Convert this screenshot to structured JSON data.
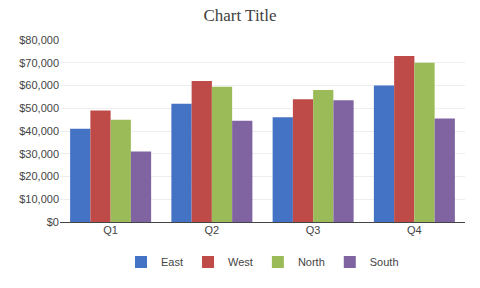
{
  "chart_data": {
    "type": "bar",
    "title": "Chart Title",
    "categories": [
      "Q1",
      "Q2",
      "Q3",
      "Q4"
    ],
    "series": [
      {
        "name": "East",
        "color": "#4472C4",
        "values": [
          41000,
          52000,
          46000,
          60000
        ]
      },
      {
        "name": "West",
        "color": "#BE4B48",
        "values": [
          49000,
          62000,
          54000,
          73000
        ]
      },
      {
        "name": "North",
        "color": "#9BBB59",
        "values": [
          45000,
          59500,
          58000,
          70000
        ]
      },
      {
        "name": "South",
        "color": "#8064A2",
        "values": [
          31000,
          44500,
          53500,
          45500
        ]
      }
    ],
    "ylim": [
      0,
      80000
    ],
    "yticks": [
      {
        "value": 0,
        "label": "$0"
      },
      {
        "value": 10000,
        "label": "$10,000"
      },
      {
        "value": 20000,
        "label": "$20,000"
      },
      {
        "value": 30000,
        "label": "$30,000"
      },
      {
        "value": 40000,
        "label": "$40,000"
      },
      {
        "value": 50000,
        "label": "$50,000"
      },
      {
        "value": 60000,
        "label": "$60,000"
      },
      {
        "value": 70000,
        "label": "$70,000"
      },
      {
        "value": 80000,
        "label": "$80,000"
      }
    ],
    "grid": true,
    "legend": "bottom"
  }
}
